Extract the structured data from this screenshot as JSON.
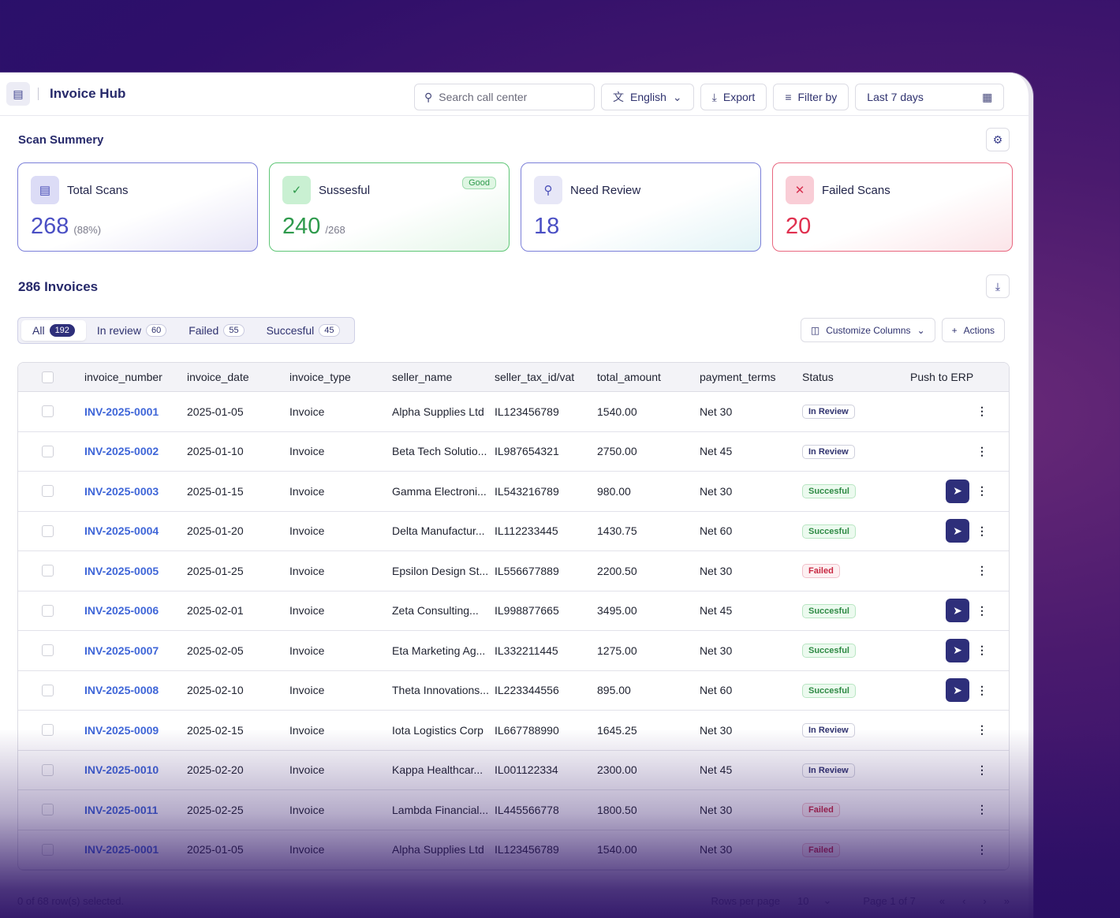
{
  "header": {
    "title": "Invoice Hub",
    "search_placeholder": "Search call center",
    "language": "English",
    "export_label": "Export",
    "filter_label": "Filter by",
    "date_range": "Last 7 days"
  },
  "summary": {
    "title": "Scan Summery",
    "cards": [
      {
        "label": "Total Scans",
        "value": "268",
        "sub": "(88%)"
      },
      {
        "label": "Sussesful",
        "value": "240",
        "sub": "/268",
        "badge": "Good"
      },
      {
        "label": "Need Review",
        "value": "18",
        "sub": ""
      },
      {
        "label": "Failed Scans",
        "value": "20",
        "sub": ""
      }
    ]
  },
  "invoices": {
    "title": "286 Invoices",
    "tabs": [
      {
        "label": "All",
        "count": "192"
      },
      {
        "label": "In review",
        "count": "60"
      },
      {
        "label": "Failed",
        "count": "55"
      },
      {
        "label": "Succesful",
        "count": "45"
      }
    ],
    "customize_label": "Customize Columns",
    "actions_label": "Actions",
    "columns": [
      "invoice_number",
      "invoice_date",
      "invoice_type",
      "seller_name",
      "seller_tax_id/vat",
      "total_amount",
      "payment_terms",
      "Status",
      "Push to ERP"
    ],
    "rows": [
      {
        "num": "INV-2025-0001",
        "date": "2025-01-05",
        "type": "Invoice",
        "seller": "Alpha Supplies Ltd",
        "tax": "IL123456789",
        "total": "1540.00",
        "terms": "Net 30",
        "status": "In Review",
        "erp": false
      },
      {
        "num": "INV-2025-0002",
        "date": "2025-01-10",
        "type": "Invoice",
        "seller": "Beta Tech Solutio...",
        "tax": "IL987654321",
        "total": "2750.00",
        "terms": "Net 45",
        "status": "In Review",
        "erp": false
      },
      {
        "num": "INV-2025-0003",
        "date": "2025-01-15",
        "type": "Invoice",
        "seller": "Gamma Electroni...",
        "tax": "IL543216789",
        "total": "980.00",
        "terms": "Net 30",
        "status": "Succesful",
        "erp": true
      },
      {
        "num": "INV-2025-0004",
        "date": "2025-01-20",
        "type": "Invoice",
        "seller": "Delta Manufactur...",
        "tax": "IL112233445",
        "total": "1430.75",
        "terms": "Net 60",
        "status": "Succesful",
        "erp": true
      },
      {
        "num": "INV-2025-0005",
        "date": "2025-01-25",
        "type": "Invoice",
        "seller": "Epsilon Design St...",
        "tax": "IL556677889",
        "total": "2200.50",
        "terms": "Net 30",
        "status": "Failed",
        "erp": false
      },
      {
        "num": "INV-2025-0006",
        "date": "2025-02-01",
        "type": "Invoice",
        "seller": "Zeta Consulting...",
        "tax": "IL998877665",
        "total": "3495.00",
        "terms": "Net 45",
        "status": "Succesful",
        "erp": true
      },
      {
        "num": "INV-2025-0007",
        "date": "2025-02-05",
        "type": "Invoice",
        "seller": "Eta Marketing Ag...",
        "tax": "IL332211445",
        "total": "1275.00",
        "terms": "Net 30",
        "status": "Succesful",
        "erp": true
      },
      {
        "num": "INV-2025-0008",
        "date": "2025-02-10",
        "type": "Invoice",
        "seller": "Theta Innovations...",
        "tax": "IL223344556",
        "total": "895.00",
        "terms": "Net 60",
        "status": "Succesful",
        "erp": true
      },
      {
        "num": "INV-2025-0009",
        "date": "2025-02-15",
        "type": "Invoice",
        "seller": "Iota Logistics Corp",
        "tax": "IL667788990",
        "total": "1645.25",
        "terms": "Net 30",
        "status": "In Review",
        "erp": false
      },
      {
        "num": "INV-2025-0010",
        "date": "2025-02-20",
        "type": "Invoice",
        "seller": "Kappa Healthcar...",
        "tax": "IL001122334",
        "total": "2300.00",
        "terms": "Net 45",
        "status": "In Review",
        "erp": false
      },
      {
        "num": "INV-2025-0011",
        "date": "2025-02-25",
        "type": "Invoice",
        "seller": "Lambda Financial...",
        "tax": "IL445566778",
        "total": "1800.50",
        "terms": "Net 30",
        "status": "Failed",
        "erp": false
      },
      {
        "num": "INV-2025-0001",
        "date": "2025-01-05",
        "type": "Invoice",
        "seller": "Alpha Supplies Ltd",
        "tax": "IL123456789",
        "total": "1540.00",
        "terms": "Net 30",
        "status": "Failed",
        "erp": false
      }
    ]
  },
  "footer": {
    "selected_text": "0 of 68 row(s) selected.",
    "rows_per_page_label": "Rows per page",
    "rows_per_page": "10",
    "page_text": "Page 1 of 7"
  },
  "icons": {
    "search": "search-icon",
    "language": "translate-icon",
    "export": "download-icon",
    "filter": "filter-icon",
    "calendar": "calendar-icon",
    "send": "send-icon"
  },
  "colors": {
    "brand": "#2e2f7a",
    "link": "#3f66d8",
    "success": "#2e9a4c",
    "failed": "#e0304f",
    "accent": "#4a4fc4"
  }
}
